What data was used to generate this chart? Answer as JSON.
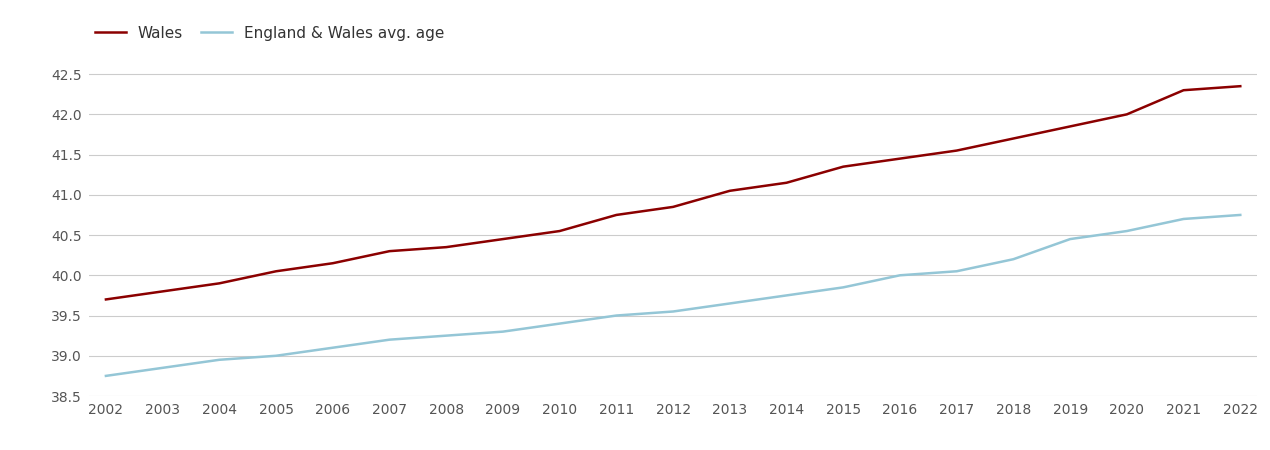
{
  "years": [
    2002,
    2003,
    2004,
    2005,
    2006,
    2007,
    2008,
    2009,
    2010,
    2011,
    2012,
    2013,
    2014,
    2015,
    2016,
    2017,
    2018,
    2019,
    2020,
    2021,
    2022
  ],
  "wales": [
    39.7,
    39.8,
    39.9,
    40.05,
    40.15,
    40.3,
    40.35,
    40.45,
    40.55,
    40.75,
    40.85,
    41.05,
    41.15,
    41.35,
    41.45,
    41.55,
    41.7,
    41.85,
    42.0,
    42.3,
    42.35
  ],
  "england_wales": [
    38.75,
    38.85,
    38.95,
    39.0,
    39.1,
    39.2,
    39.25,
    39.3,
    39.4,
    39.5,
    39.55,
    39.65,
    39.75,
    39.85,
    40.0,
    40.05,
    40.2,
    40.45,
    40.55,
    40.7,
    40.75
  ],
  "wales_color": "#8B0000",
  "ew_color": "#94C6D6",
  "background_color": "#ffffff",
  "grid_color": "#cccccc",
  "wales_label": "Wales",
  "ew_label": "England & Wales avg. age",
  "ylim_min": 38.5,
  "ylim_max": 42.75,
  "yticks": [
    38.5,
    39.0,
    39.5,
    40.0,
    40.5,
    41.0,
    41.5,
    42.0,
    42.5
  ],
  "line_width": 1.8,
  "legend_fontsize": 11,
  "tick_fontsize": 10,
  "tick_color": "#555555"
}
